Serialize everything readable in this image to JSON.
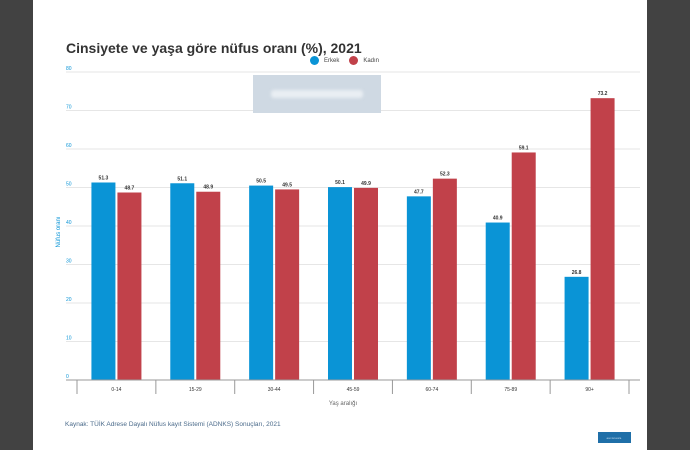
{
  "frame": {
    "background": "#424242",
    "panel": "#ffffff"
  },
  "watermark": {
    "brand": "euronews."
  },
  "source_note": "Kaynak: TÜİK Adrese Dayalı Nüfus kayıt Sistemi (ADNKS) Sonuçları, 2021",
  "logo": {
    "text": "euronews."
  },
  "chart_data": {
    "type": "bar",
    "title": "Cinsiyete ve yaşa göre nüfus oranı (%), 2021",
    "xlabel": "Yaş aralığı",
    "ylabel": "Nüfus oranı",
    "ylim": [
      0,
      80
    ],
    "yticks": [
      0,
      10,
      20,
      30,
      40,
      50,
      60,
      70,
      80
    ],
    "grid": true,
    "legend_position": "top-center",
    "categories": [
      "0-14",
      "15-29",
      "30-44",
      "45-59",
      "60-74",
      "75-89",
      "90+"
    ],
    "series": [
      {
        "name": "Erkek",
        "color": "#0a94d6",
        "values": [
          51.3,
          51.1,
          50.5,
          50.1,
          47.7,
          40.9,
          26.8
        ]
      },
      {
        "name": "Kadın",
        "color": "#c1414a",
        "values": [
          48.7,
          48.9,
          49.5,
          49.9,
          52.3,
          59.1,
          73.2
        ]
      }
    ]
  }
}
